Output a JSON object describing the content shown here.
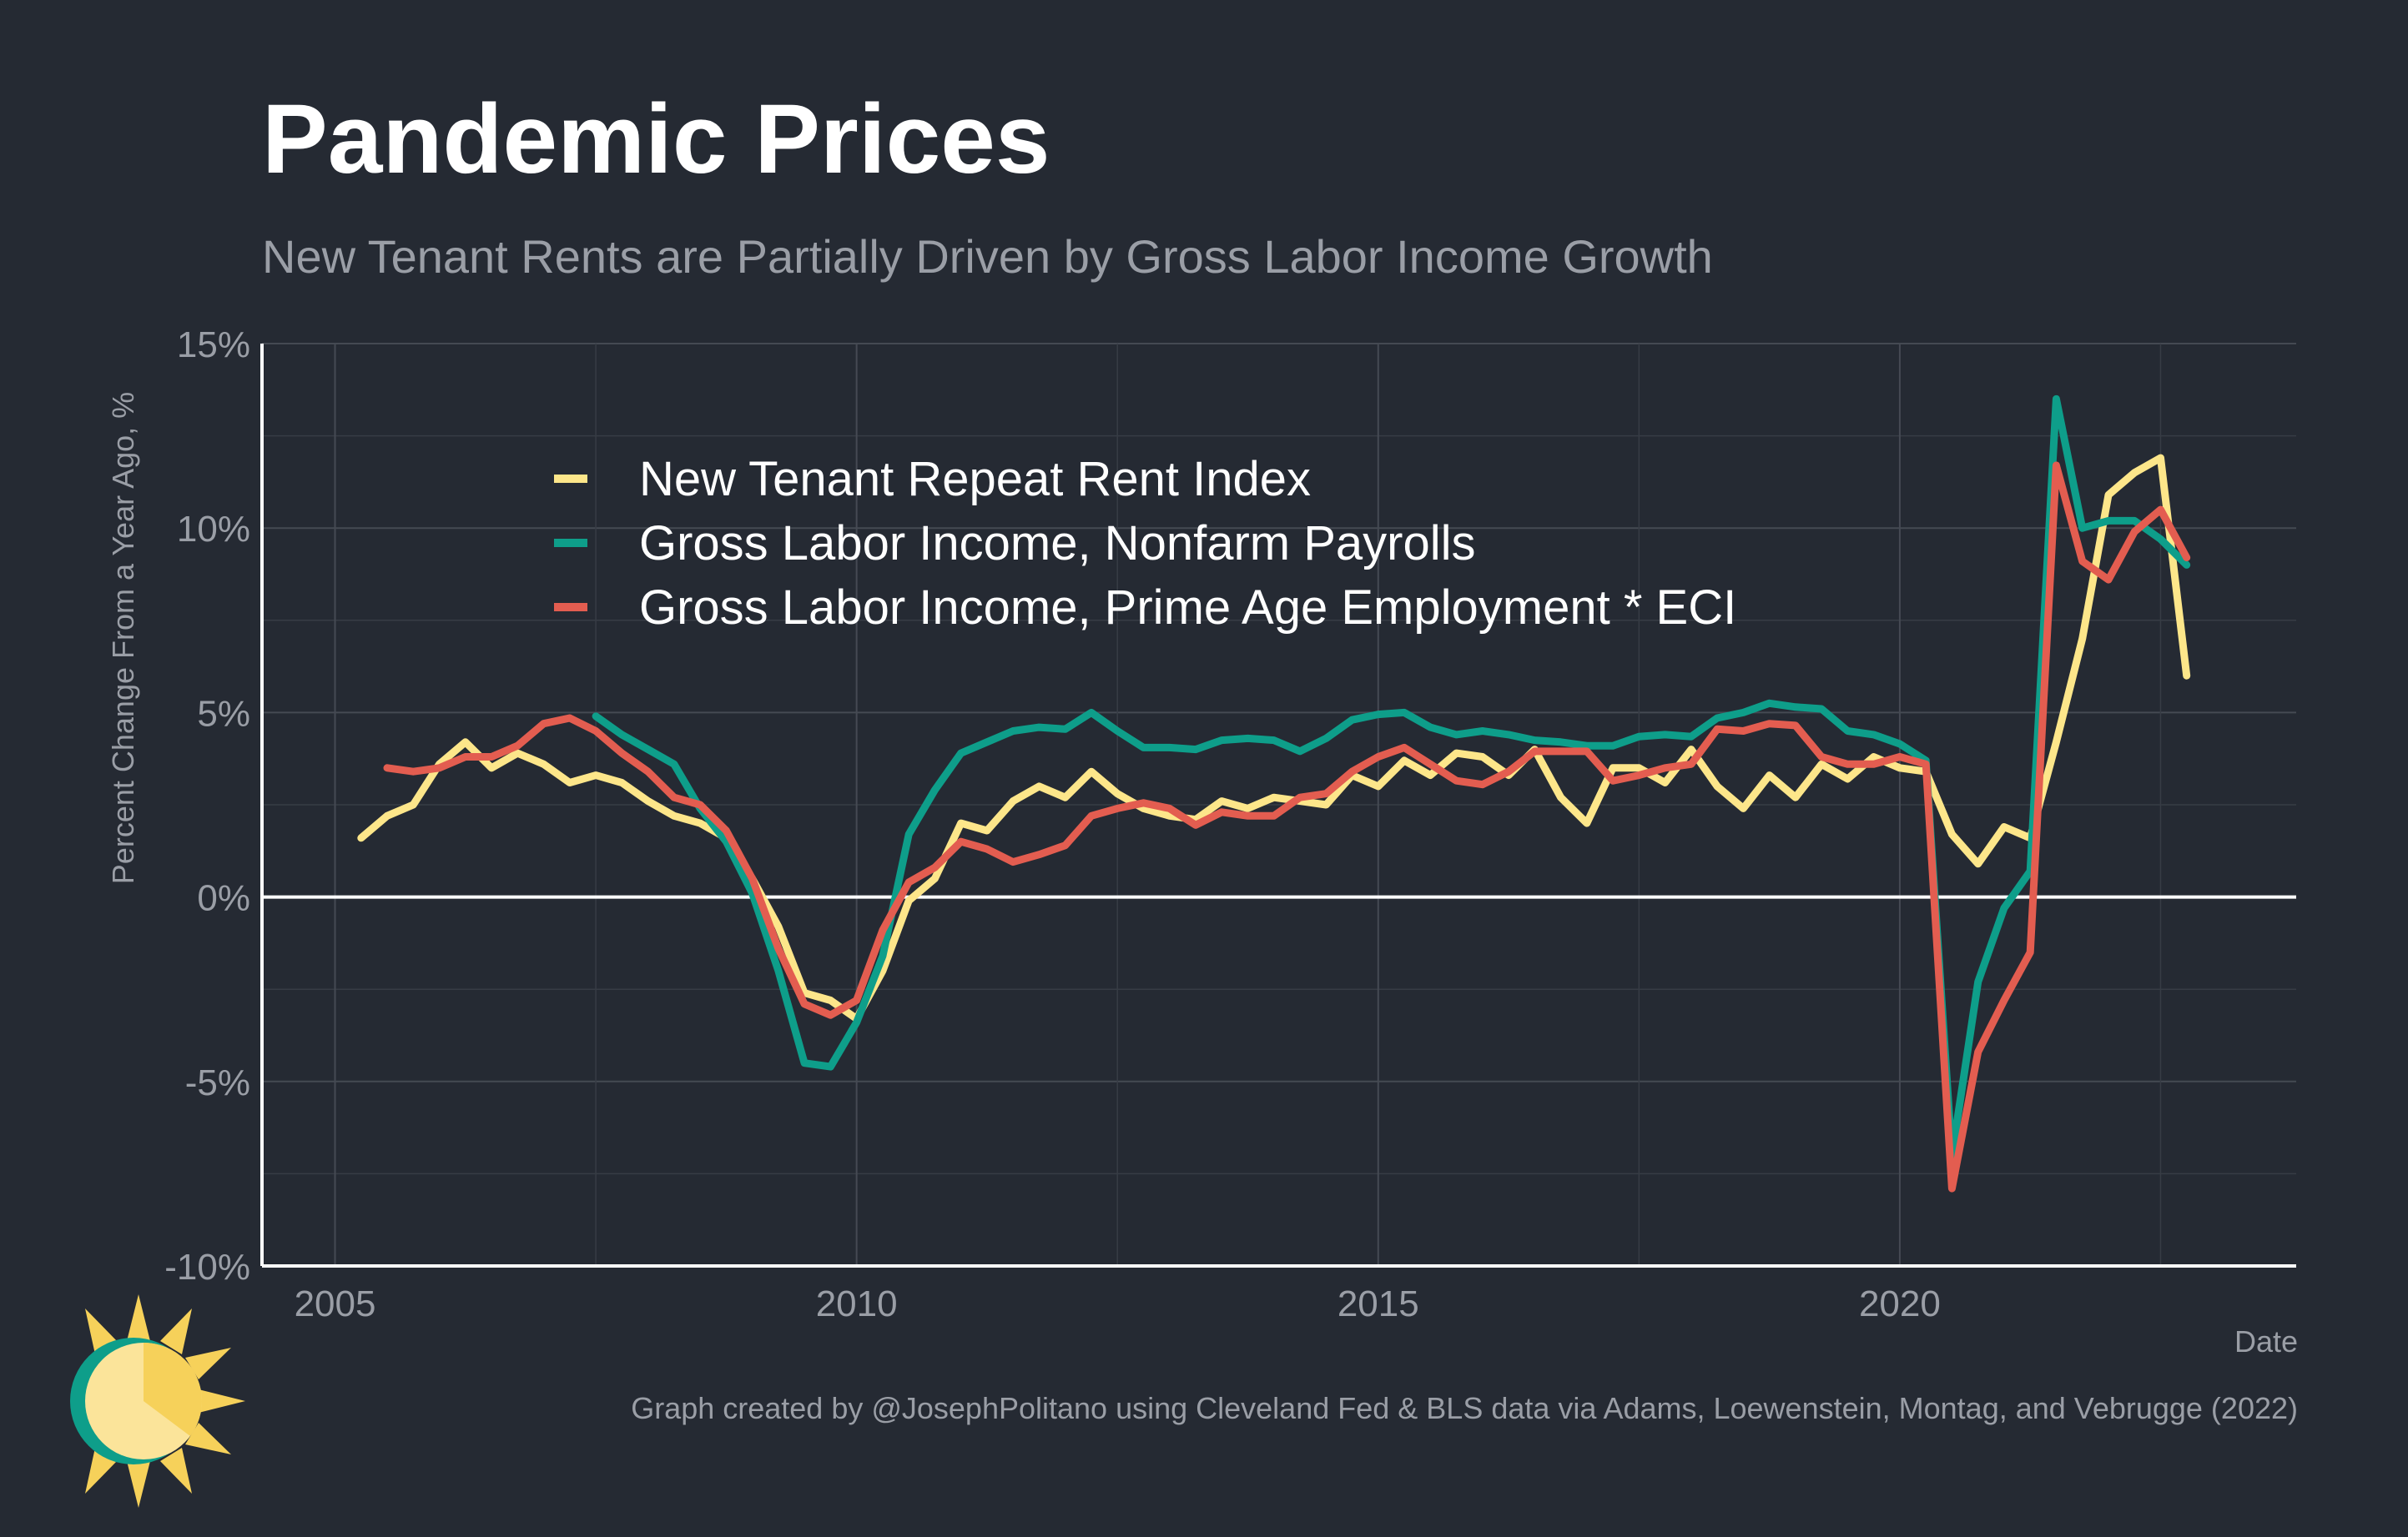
{
  "chart_data": {
    "type": "line",
    "title": "Pandemic Prices",
    "subtitle": "New Tenant Rents are Partially Driven by Gross Labor Income Growth",
    "xlabel": "Date",
    "ylabel": "Percent Change From a Year Ago, %",
    "xlim": [
      2004.3,
      2023.8
    ],
    "ylim": [
      -10,
      15
    ],
    "x_ticks": [
      2005,
      2010,
      2015,
      2020
    ],
    "x_tick_labels": [
      "2005",
      "2010",
      "2015",
      "2020"
    ],
    "y_ticks": [
      -10,
      -5,
      0,
      5,
      10,
      15
    ],
    "y_tick_labels": [
      "-10%",
      "-5%",
      "0%",
      "5%",
      "10%",
      "15%"
    ],
    "grid": true,
    "legend_position": "top-left",
    "series": [
      {
        "name": "New Tenant Repeat Rent Index",
        "color": "#fde68a",
        "points": [
          [
            2005.25,
            1.6
          ],
          [
            2005.5,
            2.2
          ],
          [
            2005.75,
            2.5
          ],
          [
            2006.0,
            3.6
          ],
          [
            2006.25,
            4.2
          ],
          [
            2006.5,
            3.5
          ],
          [
            2006.75,
            3.9
          ],
          [
            2007.0,
            3.6
          ],
          [
            2007.25,
            3.1
          ],
          [
            2007.5,
            3.3
          ],
          [
            2007.75,
            3.1
          ],
          [
            2008.0,
            2.6
          ],
          [
            2008.25,
            2.2
          ],
          [
            2008.5,
            2.0
          ],
          [
            2008.75,
            1.6
          ],
          [
            2009.0,
            0.5
          ],
          [
            2009.25,
            -0.8
          ],
          [
            2009.5,
            -2.6
          ],
          [
            2009.75,
            -2.8
          ],
          [
            2010.0,
            -3.3
          ],
          [
            2010.25,
            -2.0
          ],
          [
            2010.5,
            -0.1
          ],
          [
            2010.75,
            0.5
          ],
          [
            2011.0,
            2.0
          ],
          [
            2011.25,
            1.8
          ],
          [
            2011.5,
            2.6
          ],
          [
            2011.75,
            3.0
          ],
          [
            2012.0,
            2.7
          ],
          [
            2012.25,
            3.4
          ],
          [
            2012.5,
            2.8
          ],
          [
            2012.75,
            2.4
          ],
          [
            2013.0,
            2.2
          ],
          [
            2013.25,
            2.1
          ],
          [
            2013.5,
            2.6
          ],
          [
            2013.75,
            2.4
          ],
          [
            2014.0,
            2.7
          ],
          [
            2014.25,
            2.6
          ],
          [
            2014.5,
            2.5
          ],
          [
            2014.75,
            3.3
          ],
          [
            2015.0,
            3.0
          ],
          [
            2015.25,
            3.7
          ],
          [
            2015.5,
            3.3
          ],
          [
            2015.75,
            3.9
          ],
          [
            2016.0,
            3.8
          ],
          [
            2016.25,
            3.3
          ],
          [
            2016.5,
            4.0
          ],
          [
            2016.75,
            2.7
          ],
          [
            2017.0,
            2.0
          ],
          [
            2017.25,
            3.5
          ],
          [
            2017.5,
            3.5
          ],
          [
            2017.75,
            3.1
          ],
          [
            2018.0,
            4.0
          ],
          [
            2018.25,
            3.0
          ],
          [
            2018.5,
            2.4
          ],
          [
            2018.75,
            3.3
          ],
          [
            2019.0,
            2.7
          ],
          [
            2019.25,
            3.6
          ],
          [
            2019.5,
            3.2
          ],
          [
            2019.75,
            3.8
          ],
          [
            2020.0,
            3.5
          ],
          [
            2020.25,
            3.4
          ],
          [
            2020.5,
            1.7
          ],
          [
            2020.75,
            0.9
          ],
          [
            2021.0,
            1.9
          ],
          [
            2021.25,
            1.6
          ],
          [
            2021.5,
            4.2
          ],
          [
            2021.75,
            7.0
          ],
          [
            2022.0,
            10.9
          ],
          [
            2022.25,
            11.5
          ],
          [
            2022.5,
            11.9
          ],
          [
            2022.75,
            6.0
          ]
        ]
      },
      {
        "name": "Gross Labor Income, Nonfarm Payrolls",
        "color": "#0e9e8a",
        "points": [
          [
            2007.5,
            4.9
          ],
          [
            2007.75,
            4.4
          ],
          [
            2008.0,
            4.0
          ],
          [
            2008.25,
            3.6
          ],
          [
            2008.5,
            2.4
          ],
          [
            2008.75,
            1.5
          ],
          [
            2009.0,
            0.1
          ],
          [
            2009.25,
            -2.0
          ],
          [
            2009.5,
            -4.5
          ],
          [
            2009.75,
            -4.6
          ],
          [
            2010.0,
            -3.4
          ],
          [
            2010.25,
            -1.6
          ],
          [
            2010.5,
            1.7
          ],
          [
            2010.75,
            2.9
          ],
          [
            2011.0,
            3.9
          ],
          [
            2011.25,
            4.2
          ],
          [
            2011.5,
            4.5
          ],
          [
            2011.75,
            4.6
          ],
          [
            2012.0,
            4.55
          ],
          [
            2012.25,
            5.0
          ],
          [
            2012.5,
            4.5
          ],
          [
            2012.75,
            4.05
          ],
          [
            2013.0,
            4.05
          ],
          [
            2013.25,
            4.0
          ],
          [
            2013.5,
            4.25
          ],
          [
            2013.75,
            4.3
          ],
          [
            2014.0,
            4.25
          ],
          [
            2014.25,
            3.95
          ],
          [
            2014.5,
            4.3
          ],
          [
            2014.75,
            4.8
          ],
          [
            2015.0,
            4.95
          ],
          [
            2015.25,
            5.0
          ],
          [
            2015.5,
            4.6
          ],
          [
            2015.75,
            4.4
          ],
          [
            2016.0,
            4.5
          ],
          [
            2016.25,
            4.4
          ],
          [
            2016.5,
            4.25
          ],
          [
            2016.75,
            4.2
          ],
          [
            2017.0,
            4.1
          ],
          [
            2017.25,
            4.1
          ],
          [
            2017.5,
            4.35
          ],
          [
            2017.75,
            4.4
          ],
          [
            2018.0,
            4.35
          ],
          [
            2018.25,
            4.85
          ],
          [
            2018.5,
            5.0
          ],
          [
            2018.75,
            5.25
          ],
          [
            2019.0,
            5.15
          ],
          [
            2019.25,
            5.1
          ],
          [
            2019.5,
            4.5
          ],
          [
            2019.75,
            4.4
          ],
          [
            2020.0,
            4.15
          ],
          [
            2020.25,
            3.7
          ],
          [
            2020.5,
            -7.0
          ],
          [
            2020.75,
            -2.3
          ],
          [
            2021.0,
            -0.3
          ],
          [
            2021.25,
            0.7
          ],
          [
            2021.5,
            13.5
          ],
          [
            2021.75,
            10.0
          ],
          [
            2022.0,
            10.2
          ],
          [
            2022.25,
            10.2
          ],
          [
            2022.5,
            9.7
          ],
          [
            2022.75,
            9.0
          ]
        ]
      },
      {
        "name": "Gross Labor Income, Prime Age Employment * ECI",
        "color": "#e35d50",
        "points": [
          [
            2005.5,
            3.5
          ],
          [
            2005.75,
            3.4
          ],
          [
            2006.0,
            3.5
          ],
          [
            2006.25,
            3.8
          ],
          [
            2006.5,
            3.8
          ],
          [
            2006.75,
            4.1
          ],
          [
            2007.0,
            4.7
          ],
          [
            2007.25,
            4.85
          ],
          [
            2007.5,
            4.5
          ],
          [
            2007.75,
            3.9
          ],
          [
            2008.0,
            3.4
          ],
          [
            2008.25,
            2.7
          ],
          [
            2008.5,
            2.5
          ],
          [
            2008.75,
            1.8
          ],
          [
            2009.0,
            0.5
          ],
          [
            2009.25,
            -1.4
          ],
          [
            2009.5,
            -2.9
          ],
          [
            2009.75,
            -3.2
          ],
          [
            2010.0,
            -2.8
          ],
          [
            2010.25,
            -0.9
          ],
          [
            2010.5,
            0.4
          ],
          [
            2010.75,
            0.8
          ],
          [
            2011.0,
            1.5
          ],
          [
            2011.25,
            1.3
          ],
          [
            2011.5,
            0.95
          ],
          [
            2011.75,
            1.15
          ],
          [
            2012.0,
            1.4
          ],
          [
            2012.25,
            2.2
          ],
          [
            2012.5,
            2.4
          ],
          [
            2012.75,
            2.55
          ],
          [
            2013.0,
            2.4
          ],
          [
            2013.25,
            1.95
          ],
          [
            2013.5,
            2.3
          ],
          [
            2013.75,
            2.2
          ],
          [
            2014.0,
            2.2
          ],
          [
            2014.25,
            2.7
          ],
          [
            2014.5,
            2.8
          ],
          [
            2014.75,
            3.4
          ],
          [
            2015.0,
            3.8
          ],
          [
            2015.25,
            4.05
          ],
          [
            2015.5,
            3.6
          ],
          [
            2015.75,
            3.15
          ],
          [
            2016.0,
            3.05
          ],
          [
            2016.25,
            3.4
          ],
          [
            2016.5,
            3.95
          ],
          [
            2016.75,
            3.95
          ],
          [
            2017.0,
            3.95
          ],
          [
            2017.25,
            3.15
          ],
          [
            2017.5,
            3.3
          ],
          [
            2017.75,
            3.5
          ],
          [
            2018.0,
            3.6
          ],
          [
            2018.25,
            4.55
          ],
          [
            2018.5,
            4.5
          ],
          [
            2018.75,
            4.7
          ],
          [
            2019.0,
            4.65
          ],
          [
            2019.25,
            3.8
          ],
          [
            2019.5,
            3.6
          ],
          [
            2019.75,
            3.6
          ],
          [
            2020.0,
            3.8
          ],
          [
            2020.25,
            3.6
          ],
          [
            2020.5,
            -7.9
          ],
          [
            2020.75,
            -4.2
          ],
          [
            2021.0,
            -2.8
          ],
          [
            2021.25,
            -1.5
          ],
          [
            2021.5,
            11.7
          ],
          [
            2021.75,
            9.1
          ],
          [
            2022.0,
            8.6
          ],
          [
            2022.25,
            9.9
          ],
          [
            2022.5,
            10.5
          ],
          [
            2022.75,
            9.2
          ]
        ]
      }
    ]
  },
  "footer": {
    "caption": "Graph created by @JosephPolitano using Cleveland Fed & BLS data via Adams, Loewenstein, Montag, and Vebrugge (2022)",
    "logo_icon": "sun-icon"
  }
}
